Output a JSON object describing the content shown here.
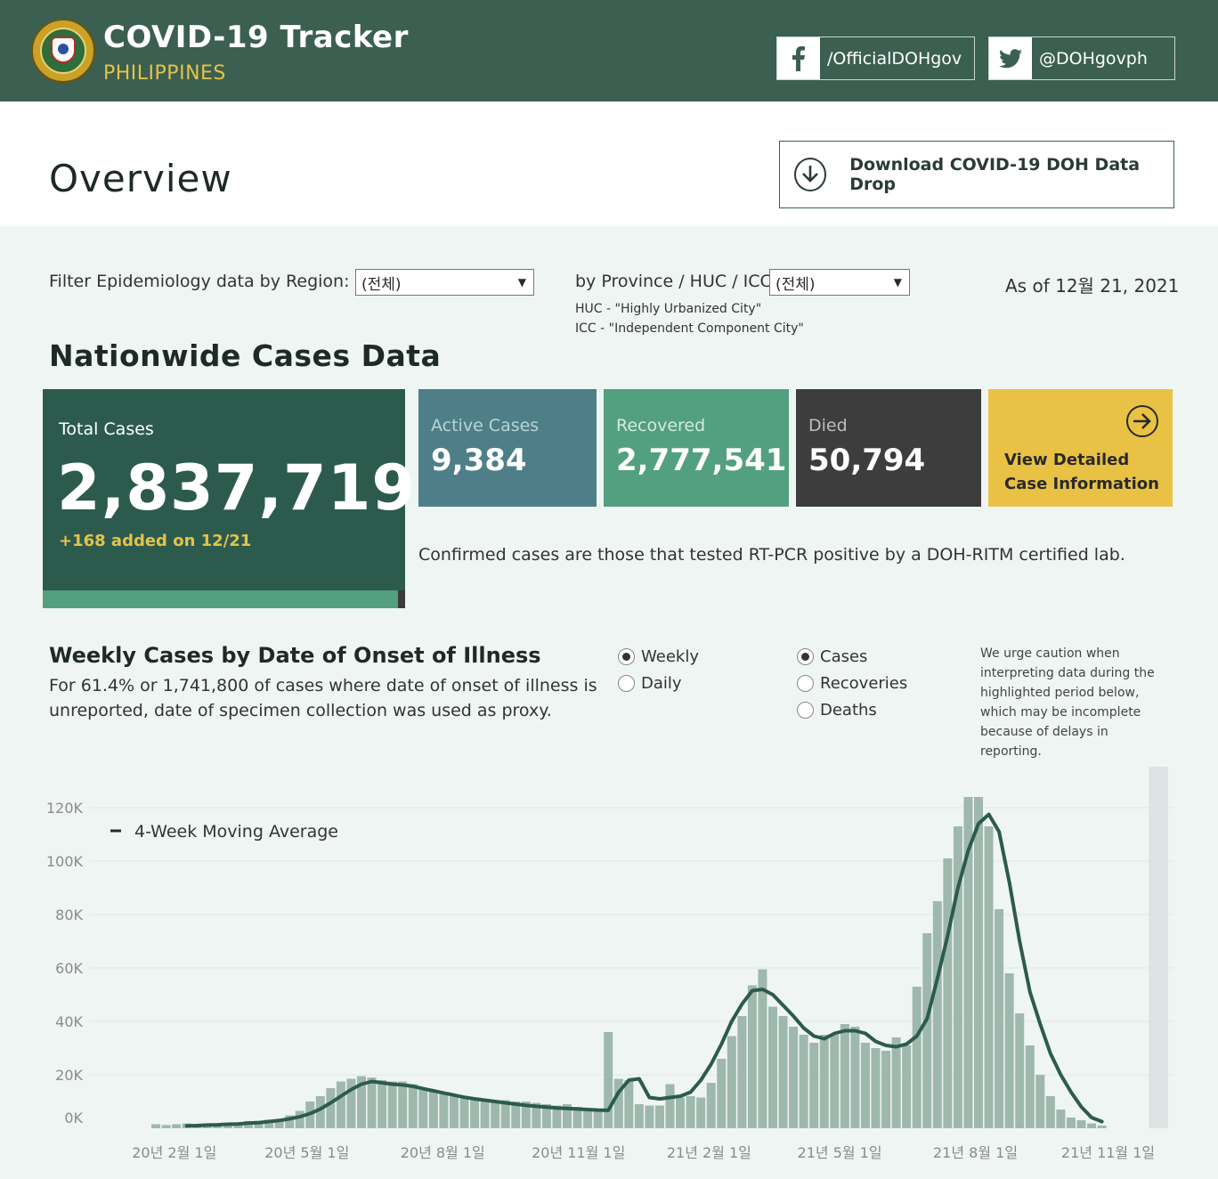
{
  "header": {
    "title": "COVID-19 Tracker",
    "subtitle": "PHILIPPINES",
    "facebook": "/OfficialDOHgov",
    "twitter": "@DOHgovph"
  },
  "overview": {
    "title": "Overview",
    "download_label": "Download COVID-19 DOH Data Drop"
  },
  "filters": {
    "region_label": "Filter Epidemiology data by Region:",
    "region_value": "(전체)",
    "province_label": "by Province / HUC / ICC:",
    "province_value": "(전체)",
    "huc_note": "HUC - \"Highly Urbanized City\"",
    "icc_note": "ICC - \"Independent Component City\"",
    "as_of": "As of 12월 21, 2021"
  },
  "nationwide": {
    "title": "Nationwide Cases Data",
    "total_label": "Total Cases",
    "total_value": "2,837,719",
    "total_added": "+168 added on 12/21",
    "active_label": "Active Cases",
    "active_value": "9,384",
    "recovered_label": "Recovered",
    "recovered_value": "2,777,541",
    "died_label": "Died",
    "died_value": "50,794",
    "detail_label_1": "View Detailed",
    "detail_label_2": "Case Information",
    "confirmed_note": "Confirmed cases are those that tested RT-PCR positive by a DOH-RITM certified lab."
  },
  "weekly": {
    "title": "Weekly Cases by Date of Onset of Illness",
    "desc_1": "For 61.4% or 1,741,800 of cases where date of onset of illness is",
    "desc_2": "unreported, date of specimen collection was used as proxy.",
    "freq_options": [
      "Weekly",
      "Daily"
    ],
    "freq_selected": "Weekly",
    "metric_options": [
      "Cases",
      "Recoveries",
      "Deaths"
    ],
    "metric_selected": "Cases",
    "caution": [
      "We urge caution when",
      "interpreting data during the",
      "highlighted period below,",
      "which may be incomplete",
      "because of delays in",
      "reporting."
    ]
  },
  "colors": {
    "header_bg": "#3b5f50",
    "accent_yellow": "#e9c245",
    "total_card": "#2c5b4e",
    "active_card": "#4e7f89",
    "recovered_card": "#52a07f",
    "died_card": "#3d3d3d",
    "bar": "#9fb8ad",
    "line": "#2c5b4e"
  },
  "icons": {
    "facebook": "facebook-icon",
    "twitter": "twitter-icon",
    "download": "download-icon",
    "arrow": "arrow-right-circle-icon"
  },
  "chart_data": {
    "type": "bar",
    "title": "Weekly Cases by Date of Onset of Illness",
    "ylim": [
      0,
      124000
    ],
    "yticks": [
      0,
      20000,
      40000,
      60000,
      80000,
      100000,
      120000
    ],
    "ytick_labels": [
      "0K",
      "20K",
      "40K",
      "60K",
      "80K",
      "100K",
      "120K"
    ],
    "xtick_labels": [
      "20년 2월 1일",
      "20년 5월 1일",
      "20년 8월 1일",
      "20년 11월 1일",
      "21년 2월 1일",
      "21년 5월 1일",
      "21년 8월 1일",
      "21년 11월 1일"
    ],
    "xtick_weeks": [
      1.8,
      14.7,
      27.9,
      41.1,
      53.8,
      66.5,
      79.7,
      92.6
    ],
    "highlight_weeks": [
      97,
      98
    ],
    "legend": "4-Week Moving Average",
    "weekly_cases": [
      1500,
      1200,
      1500,
      1800,
      1500,
      1500,
      1600,
      2000,
      2200,
      2700,
      2800,
      3200,
      3500,
      4800,
      6500,
      10000,
      12000,
      15000,
      17500,
      18500,
      19500,
      19000,
      18000,
      17500,
      17500,
      16500,
      15000,
      14000,
      13500,
      12500,
      12000,
      11500,
      11000,
      10500,
      10500,
      10000,
      10000,
      9500,
      9000,
      8500,
      9000,
      8000,
      7500,
      7000,
      36000,
      18500,
      18000,
      9000,
      8500,
      8500,
      16500,
      11500,
      12000,
      11500,
      17000,
      26000,
      34500,
      42000,
      53500,
      59500,
      45500,
      42000,
      38000,
      35000,
      32000,
      35000,
      35000,
      39000,
      38000,
      32000,
      30000,
      29000,
      34000,
      31000,
      53000,
      73000,
      85000,
      101000,
      113000,
      124000,
      124000,
      113000,
      82000,
      58000,
      43000,
      31000,
      20000,
      12000,
      7000,
      4000,
      3000,
      1800,
      1000
    ],
    "moving_average": [
      900,
      1000,
      1200,
      1300,
      1500,
      1600,
      1900,
      2100,
      2500,
      2900,
      3500,
      4300,
      5500,
      7200,
      9500,
      12000,
      14500,
      16500,
      17500,
      17000,
      16500,
      16200,
      15700,
      14800,
      14000,
      13200,
      12400,
      11600,
      11000,
      10500,
      10000,
      9500,
      9000,
      8600,
      8200,
      7900,
      7600,
      7400,
      7200,
      7000,
      6800,
      6700,
      13500,
      18000,
      18500,
      11500,
      11000,
      11500,
      12000,
      13500,
      18000,
      24000,
      31500,
      40000,
      46500,
      51500,
      52000,
      50000,
      46000,
      42000,
      37500,
      34500,
      33500,
      35500,
      36500,
      36500,
      35500,
      32500,
      31000,
      30500,
      31500,
      34500,
      41000,
      56000,
      72000,
      90000,
      104000,
      114000,
      117500,
      111000,
      92000,
      70000,
      51000,
      39000,
      28000,
      20000,
      13500,
      8000,
      4000,
      2500
    ],
    "ma_start_week": 3
  }
}
